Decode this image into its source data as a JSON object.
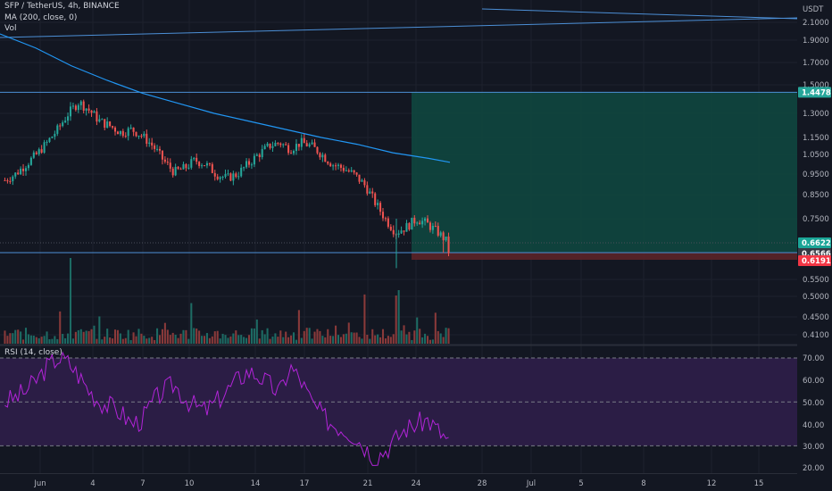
{
  "legend": {
    "symbol": "SFP / TetherUS, 4h, BINANCE",
    "ma": "MA (200, close, 0)",
    "vol": "Vol",
    "rsi": "RSI (14, close)"
  },
  "price_axis": {
    "currency": "USDT",
    "ticks": [
      "2.1000",
      "1.9000",
      "1.7000",
      "1.5000",
      "1.3000",
      "1.1500",
      "1.0500",
      "0.9500",
      "0.8500",
      "0.7500",
      "0.5500",
      "0.5000",
      "0.4500",
      "0.4100"
    ]
  },
  "rsi_axis": {
    "ticks": [
      "70.00",
      "60.00",
      "50.00",
      "40.00",
      "30.00",
      "20.00"
    ]
  },
  "time_axis": {
    "ticks": [
      "Jun",
      "4",
      "7",
      "10",
      "14",
      "17",
      "21",
      "24",
      "28",
      "Jul",
      "5",
      "8",
      "12",
      "15"
    ]
  },
  "tags": {
    "target": "1.4478",
    "current": "0.6622",
    "entry": "0.6566",
    "stop": "0.6191"
  },
  "colors": {
    "background": "#131722",
    "up": "#26a69a",
    "down": "#ef5350",
    "ma_line": "#2196f3",
    "trend_line": "#4c8fd6",
    "rsi_line": "#b224d8",
    "rsi_band": "#2b1d45",
    "profit_zone": "#10463f",
    "loss_zone": "#5b2328",
    "tag_target": "#26a69a",
    "tag_current": "#1aa597",
    "tag_entry": "#363a45",
    "tag_stop": "#f23645"
  },
  "chart_data": {
    "type": "candlestick",
    "symbol": "SFP / TetherUS",
    "interval": "4h",
    "exchange": "BINANCE",
    "price_range": [
      0.4,
      2.2
    ],
    "horizontal_levels": [
      1.4478,
      0.6566
    ],
    "position": {
      "target": 1.4478,
      "entry": 0.6566,
      "stop": 0.6191,
      "last_price": 0.6622
    },
    "ma200_path": [
      [
        0,
        1.97
      ],
      [
        40,
        1.83
      ],
      [
        80,
        1.67
      ],
      [
        120,
        1.54
      ],
      [
        160,
        1.44
      ],
      [
        200,
        1.37
      ],
      [
        240,
        1.3
      ],
      [
        280,
        1.25
      ],
      [
        320,
        1.2
      ],
      [
        360,
        1.15
      ],
      [
        400,
        1.11
      ],
      [
        440,
        1.06
      ],
      [
        480,
        1.03
      ],
      [
        504,
        1.01
      ]
    ],
    "trend_lines": [
      [
        [
          0,
          1.93
        ],
        [
          893,
          2.15
        ]
      ],
      [
        [
          540,
          2.25
        ],
        [
          893,
          2.14
        ]
      ]
    ],
    "candles_seed": [
      0.92,
      0.95,
      1.0,
      1.05,
      1.12,
      1.2,
      1.3,
      1.38,
      1.32,
      1.25,
      1.22,
      1.18,
      1.2,
      1.16,
      1.1,
      1.02,
      0.96,
      0.98,
      1.02,
      1.0,
      0.95,
      0.93,
      0.95,
      1.0,
      1.05,
      1.1,
      1.12,
      1.08,
      1.12,
      1.1,
      1.05,
      1.0,
      0.98,
      0.95,
      0.9,
      0.82,
      0.75,
      0.7,
      0.72,
      0.75,
      0.73,
      0.7,
      0.66
    ],
    "rsi": {
      "range": [
        15,
        75
      ],
      "bands": [
        70,
        50,
        30
      ],
      "values": [
        50,
        52,
        55,
        60,
        66,
        70,
        68,
        62,
        55,
        50,
        48,
        45,
        40,
        42,
        50,
        55,
        58,
        52,
        48,
        46,
        50,
        55,
        60,
        64,
        62,
        58,
        54,
        66,
        60,
        50,
        44,
        40,
        38,
        35,
        30,
        25,
        28,
        33,
        38,
        40,
        42,
        37,
        32
      ]
    }
  }
}
